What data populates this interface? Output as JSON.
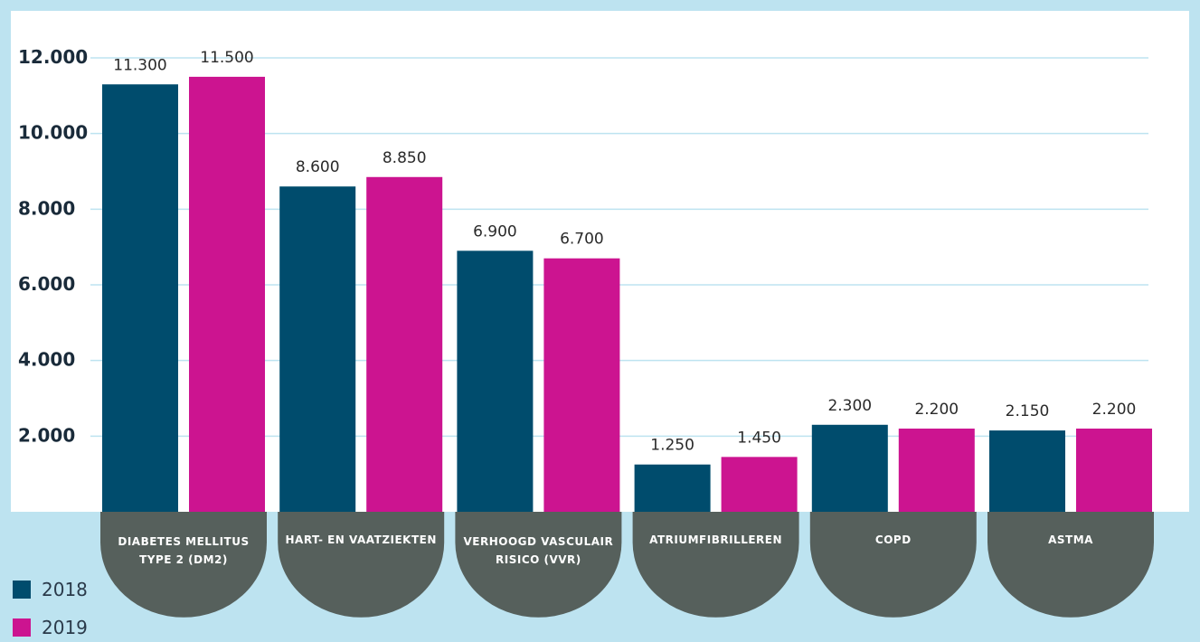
{
  "chart_data": {
    "type": "bar",
    "categories": [
      [
        "DIABETES MELLITUS",
        "TYPE 2 (DM2)"
      ],
      [
        "HART- EN VAATZIEKTEN"
      ],
      [
        "VERHOOGD VASCULAIR",
        "RISICO (VVR)"
      ],
      [
        "ATRIUMFIBRILLEREN"
      ],
      [
        "COPD"
      ],
      [
        "ASTMA"
      ]
    ],
    "series": [
      {
        "name": "2018",
        "color": "#004c6d",
        "values": [
          11300,
          8600,
          6900,
          1250,
          2300,
          2150
        ],
        "labels": [
          "11.300",
          "8.600",
          "6.900",
          "1.250",
          "2.300",
          "2.150"
        ]
      },
      {
        "name": "2019",
        "color": "#cc1490",
        "values": [
          11500,
          8850,
          6700,
          1450,
          2200,
          2200
        ],
        "labels": [
          "11.500",
          "8.850",
          "6.700",
          "1.450",
          "2.200",
          "2.200"
        ]
      }
    ],
    "yticks": [
      {
        "value": 2000,
        "label": "2.000"
      },
      {
        "value": 4000,
        "label": "4.000"
      },
      {
        "value": 6000,
        "label": "6.000"
      },
      {
        "value": 8000,
        "label": "8.000"
      },
      {
        "value": 10000,
        "label": "10.000"
      },
      {
        "value": 12000,
        "label": "12.000"
      }
    ],
    "ylim": [
      0,
      12000
    ],
    "grid": true,
    "legend_position": "bottom-left",
    "colors": {
      "plot_background": "#ffffff",
      "page_background": "#bde3f0",
      "gridline": "#bde3f0",
      "category_pill": "#56605c"
    }
  }
}
